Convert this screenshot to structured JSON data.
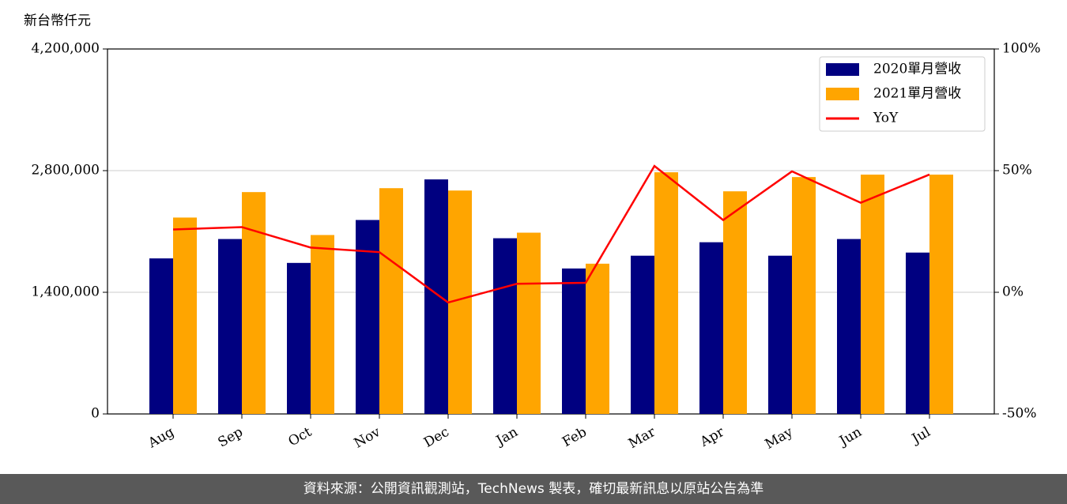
{
  "chart_data": {
    "type": "bar",
    "y_label": "新台幣仟元",
    "categories": [
      "Aug",
      "Sep",
      "Oct",
      "Nov",
      "Dec",
      "Jan",
      "Feb",
      "Mar",
      "Apr",
      "May",
      "Jun",
      "Jul"
    ],
    "series": [
      {
        "name": "2020單月營收",
        "color": "#000080",
        "values": [
          1790000,
          2013000,
          1738000,
          2232000,
          2699000,
          2022000,
          1674000,
          1821000,
          1976000,
          1821000,
          2013000,
          1857000
        ]
      },
      {
        "name": "2021單月營收",
        "color": "#ffa500",
        "values": [
          2260000,
          2553000,
          2059000,
          2598000,
          2571000,
          2086000,
          1729000,
          2781000,
          2562000,
          2726000,
          2754000,
          2754000
        ]
      },
      {
        "name": "YoY",
        "type": "line",
        "axis": "y2",
        "color": "#ff0000",
        "values": [
          25.8,
          26.8,
          18.4,
          16.5,
          -4.2,
          3.5,
          3.9,
          51.9,
          29.7,
          49.7,
          36.8,
          48.4
        ]
      }
    ],
    "ylim": [
      0,
      4200000
    ],
    "yticks": [
      0,
      {
        "value": 1400000,
        "label": "1,400,000"
      },
      {
        "value": 2800000,
        "label": "2,800,000"
      },
      {
        "value": 4200000,
        "label": "4,200,000"
      }
    ],
    "y2lim": [
      -50,
      100
    ],
    "y2ticks": [
      {
        "value": -50,
        "label": "-50%"
      },
      {
        "value": 0,
        "label": "0%"
      },
      {
        "value": 50,
        "label": "50%"
      },
      {
        "value": 100,
        "label": "100%"
      }
    ],
    "grid": true,
    "legend": "upper right"
  },
  "footer": "資料來源：公開資訊觀測站，TechNews 製表，確切最新訊息以原站公告為準"
}
